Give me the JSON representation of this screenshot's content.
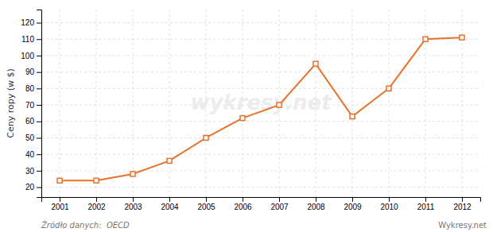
{
  "chart_data": {
    "type": "line",
    "x": [
      2001,
      2002,
      2003,
      2004,
      2005,
      2006,
      2007,
      2008,
      2009,
      2010,
      2011,
      2012
    ],
    "values": [
      24,
      24,
      28,
      36,
      50,
      62,
      70,
      95,
      63,
      80,
      110,
      111
    ],
    "xlim": [
      2000.5,
      2012.5
    ],
    "xticks": [
      2001,
      2002,
      2003,
      2004,
      2005,
      2006,
      2007,
      2008,
      2009,
      2010,
      2011,
      2012
    ],
    "ylim": [
      14,
      128
    ],
    "yticks": [
      20,
      30,
      40,
      50,
      60,
      70,
      80,
      90,
      100,
      110,
      120
    ],
    "ylabel": "Ceny ropy (w $)",
    "color": "#E8712A",
    "marker": "square",
    "grid": true,
    "annotations": [
      "wykresy.net",
      "Źródło danych:  OECD",
      "Wykresy.net"
    ]
  }
}
